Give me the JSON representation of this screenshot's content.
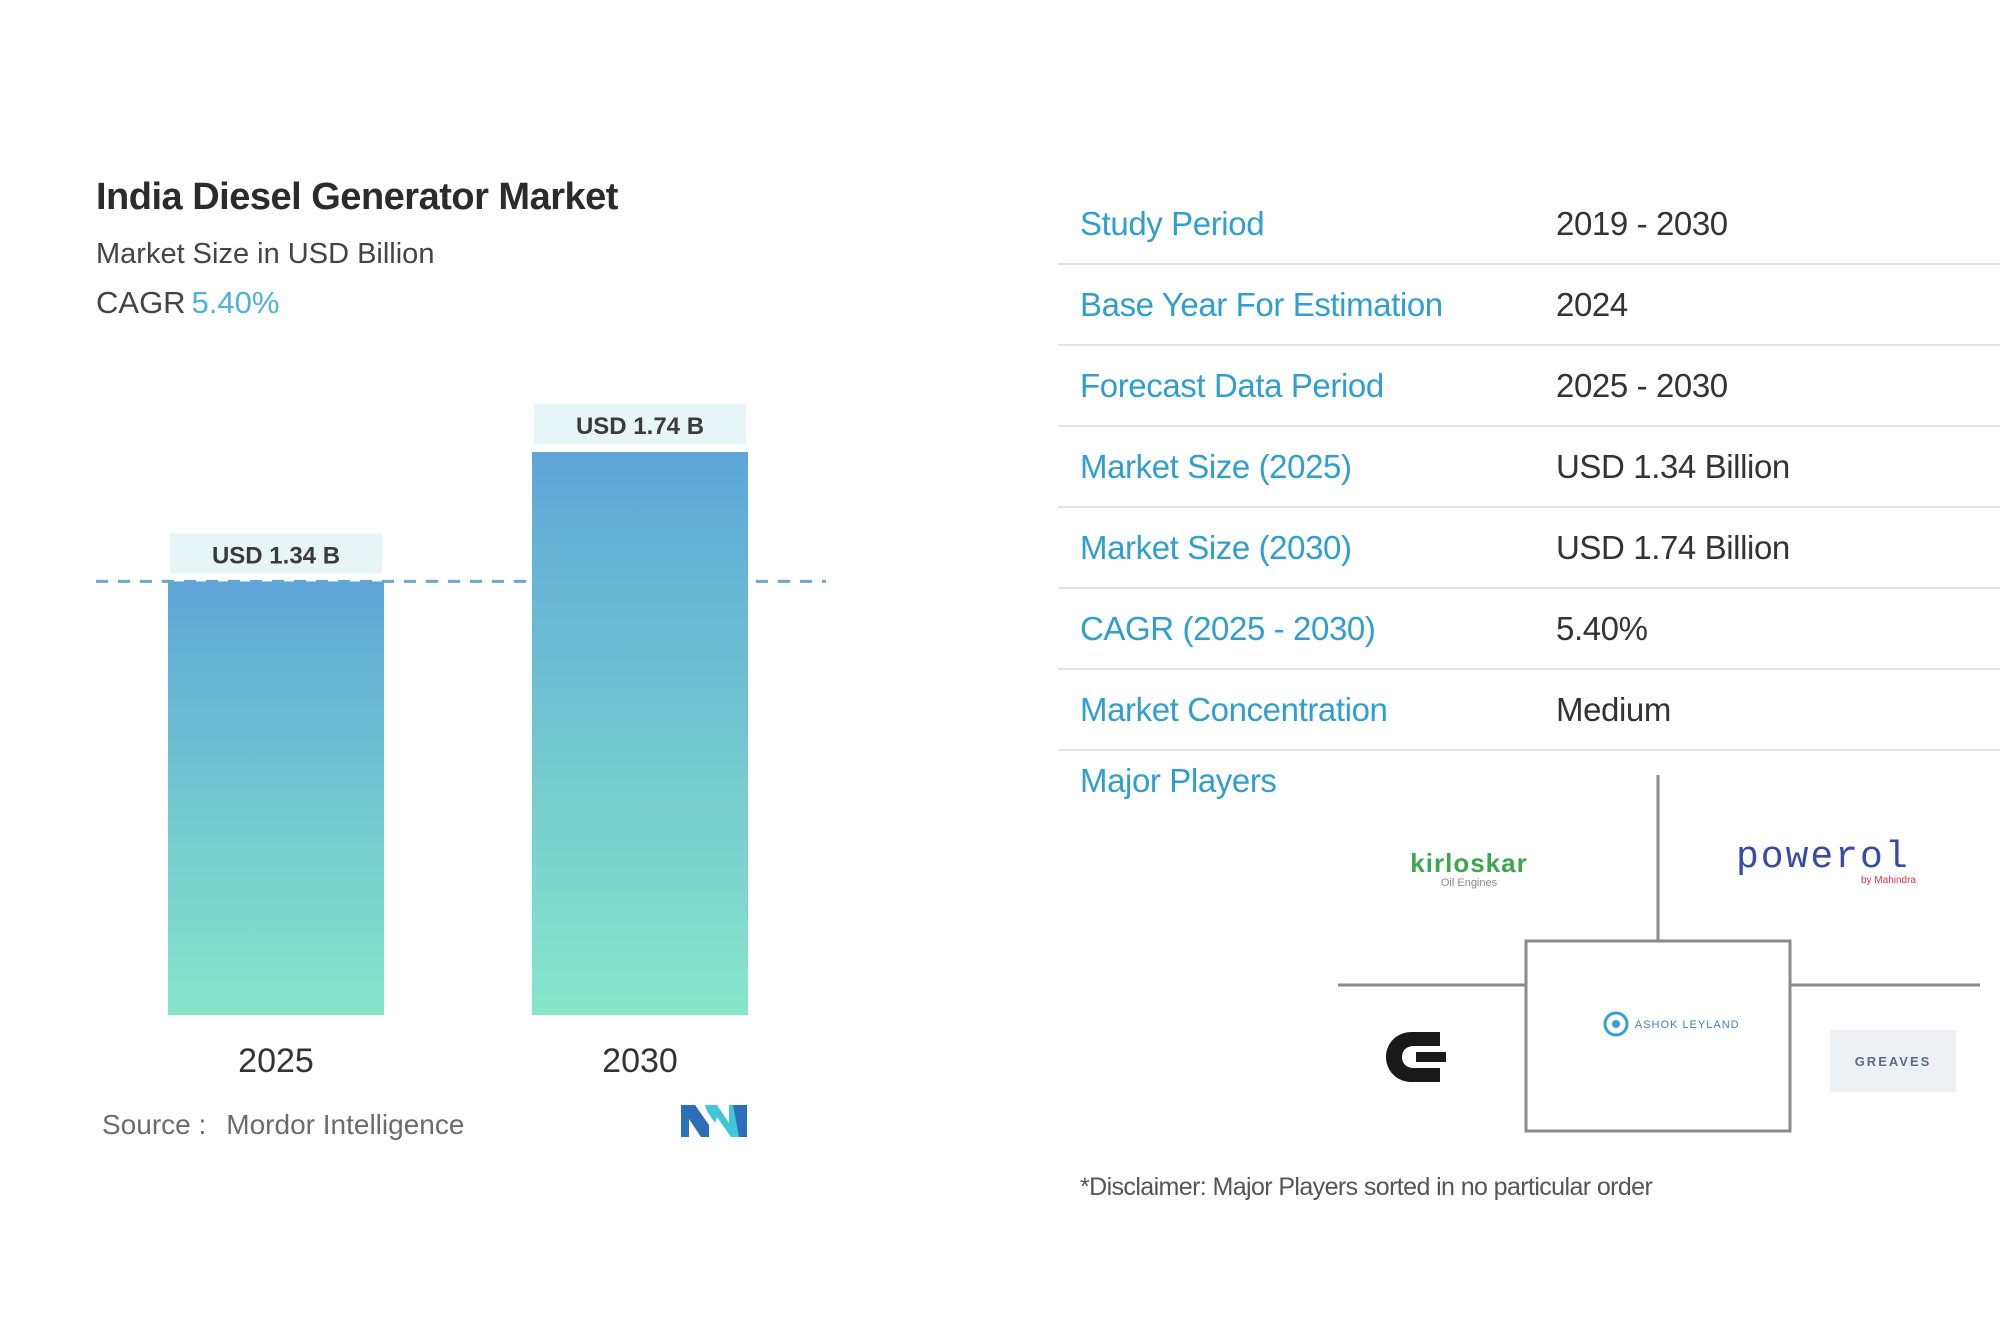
{
  "chart_data": {
    "type": "bar",
    "title": "India Diesel Generator Market",
    "subtitle": "Market Size in USD Billion",
    "cagr_label": "CAGR",
    "cagr_value": "5.40%",
    "categories": [
      "2025",
      "2030"
    ],
    "values": [
      1.34,
      1.74
    ],
    "value_labels": [
      "USD 1.34 B",
      "USD 1.74 B"
    ],
    "bar_gradient": [
      "#5fa6d8",
      "#86e6c9"
    ],
    "grid": false,
    "reference_line": "dashed at first bar value"
  },
  "source": {
    "label": "Source :",
    "name": "Mordor Intelligence"
  },
  "info_table": [
    {
      "label": "Study Period",
      "value": "2019 - 2030"
    },
    {
      "label": "Base Year For Estimation",
      "value": "2024"
    },
    {
      "label": "Forecast Data Period",
      "value": "2025 - 2030"
    },
    {
      "label": "Market Size (2025)",
      "value": "USD 1.34 Billion"
    },
    {
      "label": "Market Size (2030)",
      "value": "USD 1.74 Billion"
    },
    {
      "label": "CAGR (2025 - 2030)",
      "value": "5.40%"
    },
    {
      "label": "Market Concentration",
      "value": "Medium"
    }
  ],
  "major_players": {
    "label": "Major Players",
    "logos": {
      "kirloskar": {
        "text": "kirloskar",
        "sub": "Oil Engines"
      },
      "powerol": {
        "text": "powerol",
        "sub": "by Mahindra"
      },
      "center": {
        "text": "ASHOK LEYLAND",
        "sub": ""
      },
      "greaves": {
        "text": "GREAVES"
      },
      "cummins": {
        "icon": "cummins-logo-icon"
      }
    }
  },
  "disclaimer": "*Disclaimer: Major Players sorted in no particular order"
}
